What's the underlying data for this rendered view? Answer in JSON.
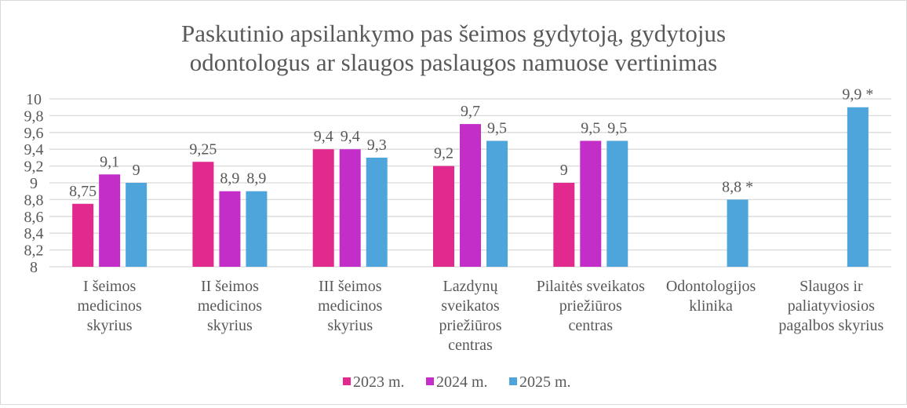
{
  "chart_data": {
    "type": "bar",
    "title": [
      "Paskutinio apsilankymo pas šeimos gydytoją, gydytojus",
      "odontologus ar slaugos paslaugos namuose vertinimas"
    ],
    "categories": [
      [
        "I šeimos",
        "medicinos",
        "skyrius"
      ],
      [
        "II šeimos",
        "medicinos",
        "skyrius"
      ],
      [
        "III šeimos",
        "medicinos",
        "skyrius"
      ],
      [
        "Lazdynų",
        "sveikatos",
        "priežiūros",
        "centras"
      ],
      [
        "Pilaitės sveikatos",
        "priežiūros",
        "centras"
      ],
      [
        "Odontologijos",
        "klinika"
      ],
      [
        "Slaugos ir",
        "paliatyviosios",
        "pagalbos skyrius"
      ]
    ],
    "series": [
      {
        "name": "2023 m.",
        "color": "#E2298D",
        "values": [
          8.75,
          9.25,
          9.4,
          9.2,
          9.0,
          null,
          null
        ],
        "labels": [
          "8,75",
          "9,25",
          "9,4",
          "9,2",
          "9",
          null,
          null
        ]
      },
      {
        "name": "2024 m.",
        "color": "#C42EC8",
        "values": [
          9.1,
          8.9,
          9.4,
          9.7,
          9.5,
          null,
          null
        ],
        "labels": [
          "9,1",
          "8,9",
          "9,4",
          "9,7",
          "9,5",
          null,
          null
        ]
      },
      {
        "name": "2025 m.",
        "color": "#4EA5DC",
        "values": [
          9.0,
          8.9,
          9.3,
          9.5,
          9.5,
          8.8,
          9.9
        ],
        "labels": [
          "9",
          "8,9",
          "9,3",
          "9,5",
          "9,5",
          "8,8 *",
          "9,9 *"
        ]
      }
    ],
    "xlabel": "",
    "ylabel": "",
    "ylim": [
      8,
      10
    ],
    "yticks": [
      "8",
      "8,2",
      "8,4",
      "8,6",
      "8,8",
      "9",
      "9,2",
      "9,4",
      "9,6",
      "9,8",
      "10"
    ],
    "grid": true,
    "legend": "bottom"
  }
}
